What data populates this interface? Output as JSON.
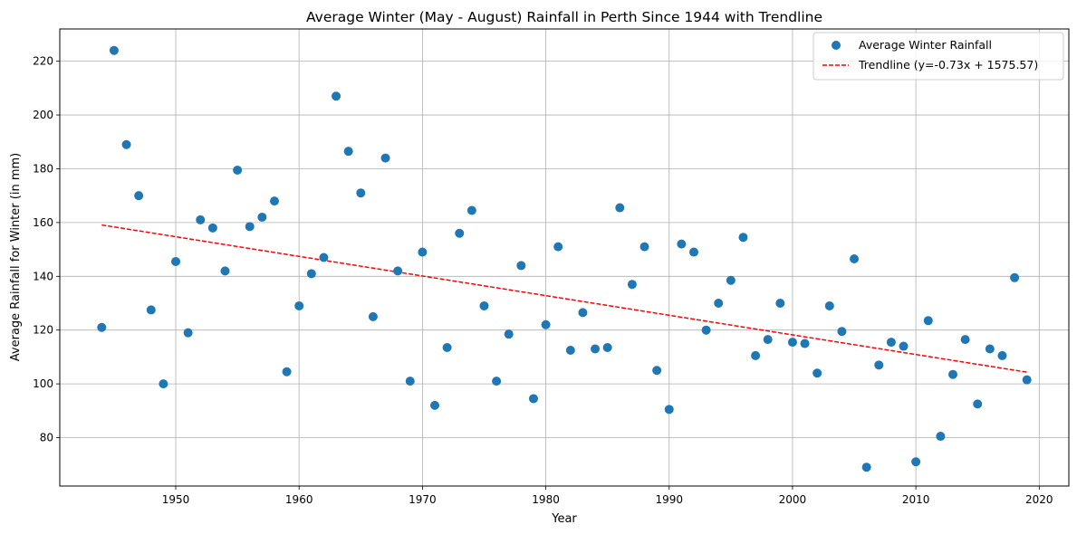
{
  "chart_data": {
    "type": "scatter",
    "title": "Average Winter (May - August) Rainfall in Perth Since 1944 with Trendline",
    "xlabel": "Year",
    "ylabel": "Average Rainfall for Winter (in mm)",
    "xlim": [
      1940.6,
      2022.4
    ],
    "ylim": [
      62,
      232
    ],
    "xticks": [
      1950,
      1960,
      1970,
      1980,
      1990,
      2000,
      2010,
      2020
    ],
    "yticks": [
      80,
      100,
      120,
      140,
      160,
      180,
      200,
      220
    ],
    "grid": true,
    "legend_position": "top-right",
    "series": [
      {
        "name": "Average Winter Rainfall",
        "type": "scatter",
        "color": "#1f77b4",
        "x": [
          1944,
          1945,
          1946,
          1947,
          1948,
          1949,
          1950,
          1951,
          1952,
          1953,
          1954,
          1955,
          1956,
          1957,
          1958,
          1959,
          1960,
          1961,
          1962,
          1963,
          1964,
          1965,
          1966,
          1967,
          1968,
          1969,
          1970,
          1971,
          1972,
          1973,
          1974,
          1975,
          1976,
          1977,
          1978,
          1979,
          1980,
          1981,
          1982,
          1983,
          1984,
          1985,
          1986,
          1987,
          1988,
          1989,
          1990,
          1991,
          1992,
          1993,
          1994,
          1995,
          1996,
          1997,
          1998,
          1999,
          2000,
          2001,
          2002,
          2003,
          2004,
          2005,
          2006,
          2007,
          2008,
          2009,
          2010,
          2011,
          2012,
          2013,
          2014,
          2015,
          2016,
          2017,
          2018,
          2019
        ],
        "y": [
          121,
          224,
          189,
          170,
          127.5,
          100,
          145.5,
          119,
          161,
          158,
          142,
          179.5,
          158.5,
          162,
          168,
          104.5,
          129,
          141,
          147,
          207,
          186.5,
          171,
          125,
          184,
          142,
          101,
          149,
          92,
          113.5,
          156,
          164.5,
          129,
          101,
          118.5,
          144,
          94.5,
          122,
          151,
          112.5,
          126.5,
          113,
          113.5,
          165.5,
          137,
          151,
          105,
          90.5,
          152,
          149,
          120,
          130,
          138.5,
          154.5,
          110.5,
          116.5,
          130,
          115.5,
          115,
          104,
          129,
          119.5,
          146.5,
          69,
          107,
          115.5,
          114,
          71,
          123.5,
          80.5,
          103.5,
          116.5,
          92.5,
          113,
          110.5,
          139.5,
          101.5
        ]
      },
      {
        "name": "Trendline (y=-0.73x + 1575.57)",
        "type": "line",
        "style": "dashed",
        "color": "#ff0000",
        "x": [
          1944,
          2019
        ],
        "y": [
          159.1,
          104.35
        ]
      }
    ]
  }
}
